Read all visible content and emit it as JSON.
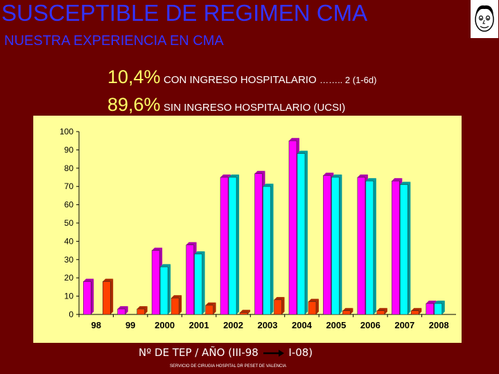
{
  "header": {
    "title": "SUSCEPTIBLE DE REGIMEN CMA",
    "subtitle": "NUESTRA EXPERIENCIA EN CMA"
  },
  "stats": [
    {
      "pct": "10,4%",
      "text": "CON INGRESO HOSPITALARIO",
      "extra": "…….. 2 (1-6d)"
    },
    {
      "pct": "89,6%",
      "text": "SIN INGRESO HOSPITALARIO (UCSI)",
      "extra": ""
    }
  ],
  "footer": {
    "label": "Nº DE  TEP / AÑO (III-98",
    "label_end": "I-08)",
    "credit": "SERVICIO DE CIRUGIA HOSPITAL DR PESET DE VALENCIA"
  },
  "colors": {
    "background": "#6b0000",
    "plot_area": "#ffff99",
    "title": "#3333ff",
    "series_magenta": "#ff00ff",
    "series_cyan": "#00ffff",
    "series_orange": "#ff4000"
  },
  "chart_data": {
    "type": "bar",
    "categories": [
      "98",
      "99",
      "2000",
      "2001",
      "2002",
      "2003",
      "2004",
      "2005",
      "2006",
      "2007",
      "2008"
    ],
    "series": [
      {
        "values": [
          18,
          3,
          35,
          38,
          75,
          77,
          95,
          76,
          75,
          73,
          6
        ],
        "color": "#ff00ff"
      },
      {
        "values": [
          null,
          null,
          26,
          33,
          75,
          70,
          88,
          75,
          73,
          71,
          6
        ],
        "color": "#00ffff"
      },
      {
        "values": [
          18,
          3,
          9,
          5,
          1,
          8,
          7,
          2,
          2,
          2,
          null
        ],
        "color": "#ff4000"
      }
    ],
    "yticks": [
      "0",
      "10",
      "20",
      "30",
      "40",
      "50",
      "60",
      "70",
      "80",
      "90",
      "100"
    ],
    "ylim": [
      0,
      100
    ],
    "grid": false,
    "legend": "none"
  }
}
